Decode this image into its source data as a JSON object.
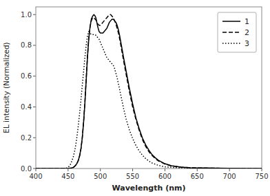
{
  "chart_data": {
    "type": "line",
    "xlabel": "Wavelength (nm)",
    "ylabel": "EL intensity (Normalized)",
    "xlim": [
      400,
      750
    ],
    "ylim": [
      0.0,
      1.05
    ],
    "xticks": [
      400,
      450,
      500,
      550,
      600,
      650,
      700,
      750
    ],
    "yticks": [
      {
        "value": 0.0,
        "label": "0.0"
      },
      0.2,
      0.4,
      0.6,
      0.8,
      {
        "value": 1.0,
        "label": "1.0"
      }
    ],
    "grid": false,
    "legend": "upper right",
    "series": [
      {
        "name": "1",
        "color": "black",
        "line_style": "solid",
        "x": [
          400,
          430,
          450,
          455,
          458,
          460,
          462,
          464,
          466,
          468,
          470,
          472,
          474,
          476,
          478,
          480,
          482,
          484,
          486,
          488,
          490,
          492,
          493,
          494,
          496,
          498,
          500,
          502,
          504,
          506,
          508,
          510,
          512,
          514,
          516,
          518,
          520,
          522,
          524,
          526,
          528,
          530,
          533,
          536,
          540,
          545,
          550,
          555,
          560,
          565,
          570,
          575,
          580,
          585,
          590,
          600,
          610,
          625,
          640,
          660,
          680,
          700,
          730,
          750
        ],
        "values": [
          0.0,
          0.0,
          0.0,
          0.003,
          0.007,
          0.013,
          0.022,
          0.035,
          0.055,
          0.085,
          0.13,
          0.2,
          0.3,
          0.42,
          0.57,
          0.72,
          0.84,
          0.92,
          0.97,
          0.99,
          1.0,
          0.99,
          0.98,
          0.96,
          0.92,
          0.89,
          0.88,
          0.88,
          0.88,
          0.89,
          0.9,
          0.91,
          0.93,
          0.95,
          0.96,
          0.97,
          0.97,
          0.96,
          0.95,
          0.93,
          0.9,
          0.86,
          0.79,
          0.72,
          0.63,
          0.52,
          0.42,
          0.33,
          0.26,
          0.2,
          0.155,
          0.12,
          0.09,
          0.07,
          0.053,
          0.031,
          0.018,
          0.009,
          0.005,
          0.003,
          0.002,
          0.001,
          0.0,
          0.0
        ]
      },
      {
        "name": "2",
        "color": "black",
        "line_style": "dashed",
        "x": [
          400,
          430,
          450,
          455,
          458,
          460,
          462,
          464,
          466,
          468,
          470,
          472,
          474,
          476,
          478,
          480,
          482,
          484,
          486,
          488,
          490,
          492,
          494,
          496,
          498,
          500,
          502,
          504,
          506,
          508,
          510,
          512,
          514,
          516,
          518,
          520,
          522,
          524,
          526,
          528,
          530,
          533,
          536,
          540,
          545,
          550,
          555,
          560,
          565,
          570,
          575,
          580,
          585,
          590,
          600,
          610,
          625,
          640,
          660,
          680,
          700,
          730,
          750
        ],
        "values": [
          0.0,
          0.0,
          0.0,
          0.003,
          0.007,
          0.013,
          0.022,
          0.035,
          0.055,
          0.085,
          0.13,
          0.2,
          0.3,
          0.43,
          0.58,
          0.73,
          0.85,
          0.92,
          0.96,
          0.98,
          0.98,
          0.97,
          0.96,
          0.94,
          0.93,
          0.93,
          0.94,
          0.95,
          0.96,
          0.97,
          0.98,
          0.99,
          1.0,
          1.0,
          0.99,
          0.98,
          0.96,
          0.94,
          0.91,
          0.88,
          0.84,
          0.77,
          0.7,
          0.61,
          0.5,
          0.4,
          0.32,
          0.25,
          0.19,
          0.145,
          0.11,
          0.085,
          0.065,
          0.049,
          0.029,
          0.017,
          0.009,
          0.005,
          0.003,
          0.002,
          0.001,
          0.0,
          0.0
        ]
      },
      {
        "name": "3",
        "color": "black",
        "line_style": "dotted",
        "x": [
          400,
          430,
          445,
          448,
          450,
          452,
          454,
          456,
          458,
          460,
          462,
          464,
          466,
          468,
          470,
          472,
          474,
          476,
          478,
          480,
          482,
          484,
          486,
          488,
          490,
          492,
          494,
          496,
          498,
          500,
          502,
          504,
          506,
          508,
          510,
          512,
          514,
          516,
          518,
          520,
          522,
          524,
          526,
          528,
          530,
          533,
          536,
          540,
          545,
          550,
          555,
          560,
          565,
          570,
          575,
          580,
          590,
          600,
          620,
          640,
          660,
          700,
          750
        ],
        "values": [
          0.0,
          0.0,
          0.0,
          0.003,
          0.008,
          0.016,
          0.03,
          0.05,
          0.075,
          0.11,
          0.155,
          0.215,
          0.285,
          0.365,
          0.45,
          0.54,
          0.63,
          0.72,
          0.8,
          0.86,
          0.89,
          0.88,
          0.87,
          0.87,
          0.87,
          0.87,
          0.86,
          0.85,
          0.84,
          0.82,
          0.8,
          0.78,
          0.76,
          0.74,
          0.72,
          0.71,
          0.7,
          0.69,
          0.68,
          0.67,
          0.65,
          0.62,
          0.59,
          0.55,
          0.51,
          0.45,
          0.39,
          0.32,
          0.25,
          0.195,
          0.15,
          0.115,
          0.087,
          0.065,
          0.049,
          0.036,
          0.02,
          0.011,
          0.005,
          0.003,
          0.002,
          0.001,
          0.0
        ]
      }
    ]
  }
}
